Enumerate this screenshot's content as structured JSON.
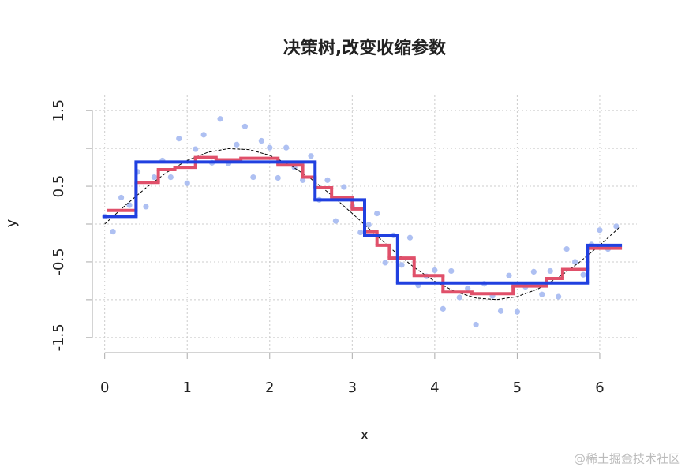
{
  "chart_data": {
    "type": "combo",
    "title": "决策树,改变收缩参数",
    "x_label": "x",
    "y_label": "y",
    "xlim": [
      -0.15,
      6.45
    ],
    "ylim": [
      -1.7,
      1.7
    ],
    "xticks": [
      0,
      1,
      2,
      3,
      4,
      5,
      6
    ],
    "yticks": [
      -1.5,
      -0.5,
      0.5,
      1.5
    ],
    "yticks_minor": [
      -1,
      0,
      1
    ],
    "grid": true,
    "series": [
      {
        "type": "scatter",
        "color": "#aec0f2",
        "x": [
          0,
          0.1,
          0.2,
          0.3,
          0.4,
          0.5,
          0.6,
          0.7,
          0.8,
          0.9,
          1,
          1.1,
          1.2,
          1.3,
          1.4,
          1.5,
          1.6,
          1.7,
          1.8,
          1.9,
          2,
          2.1,
          2.2,
          2.3,
          2.4,
          2.5,
          2.6,
          2.7,
          2.8,
          2.9,
          3,
          3.1,
          3.2,
          3.3,
          3.4,
          3.5,
          3.6,
          3.7,
          3.8,
          3.9,
          4,
          4.1,
          4.2,
          4.3,
          4.4,
          4.5,
          4.6,
          4.7,
          4.8,
          4.9,
          5,
          5.1,
          5.2,
          5.3,
          5.4,
          5.5,
          5.6,
          5.7,
          5.8,
          5.9,
          6,
          6.1,
          6.2
        ],
        "values": [
          0.1,
          -0.1,
          0.35,
          0.25,
          0.69,
          0.23,
          0.62,
          0.84,
          0.62,
          1.13,
          0.54,
          0.99,
          1.18,
          0.81,
          1.39,
          0.8,
          1.05,
          1.29,
          0.62,
          1.1,
          1.01,
          0.61,
          1.01,
          0.75,
          0.58,
          0.9,
          0.32,
          0.58,
          0.04,
          0.49,
          0.24,
          -0.11,
          -0.01,
          0.14,
          -0.51,
          -0.15,
          -0.54,
          -0.18,
          -0.81,
          -0.69,
          -0.61,
          -1.12,
          -0.62,
          -0.97,
          -0.85,
          -1.33,
          -0.79,
          -0.95,
          -1.15,
          -0.68,
          -1.16,
          -0.83,
          -0.63,
          -0.93,
          -0.62,
          -0.96,
          -0.33,
          -0.5,
          -0.67,
          -0.27,
          -0.08,
          -0.33,
          -0.03
        ]
      },
      {
        "type": "line",
        "color": "#000000",
        "dashed": true,
        "x": [
          0,
          0.25,
          0.5,
          0.75,
          1,
          1.25,
          1.5,
          1.75,
          2,
          2.25,
          2.5,
          2.75,
          3,
          3.25,
          3.5,
          3.75,
          4,
          4.25,
          4.5,
          4.75,
          5,
          5.25,
          5.5,
          5.75,
          6,
          6.25
        ],
        "values": [
          0,
          0.247,
          0.479,
          0.682,
          0.841,
          0.949,
          0.997,
          0.984,
          0.909,
          0.778,
          0.598,
          0.382,
          0.141,
          -0.108,
          -0.351,
          -0.572,
          -0.757,
          -0.895,
          -0.978,
          -0.999,
          -0.959,
          -0.859,
          -0.706,
          -0.508,
          -0.279,
          -0.033
        ]
      },
      {
        "type": "step",
        "color": "#e0506a",
        "edges": [
          0.05,
          0.38,
          0.65,
          0.85,
          1.1,
          1.35,
          1.65,
          2.1,
          2.4,
          2.55,
          2.75,
          3.0,
          3.15,
          3.3,
          3.45,
          3.75,
          4.1,
          4.45,
          4.95,
          5.35,
          5.55,
          5.85,
          6.25
        ],
        "values": [
          0.18,
          0.55,
          0.72,
          0.75,
          0.88,
          0.85,
          0.87,
          0.78,
          0.62,
          0.48,
          0.35,
          0.2,
          -0.1,
          -0.28,
          -0.45,
          -0.68,
          -0.9,
          -0.92,
          -0.82,
          -0.72,
          -0.6,
          -0.32
        ]
      },
      {
        "type": "step",
        "color": "#2040e0",
        "edges": [
          0,
          0.38,
          2.55,
          3.15,
          3.55,
          5.85,
          6.25
        ],
        "values": [
          0.1,
          0.82,
          0.32,
          -0.15,
          -0.78,
          -0.28
        ]
      }
    ]
  },
  "watermark": "@稀土掘金技术社区"
}
